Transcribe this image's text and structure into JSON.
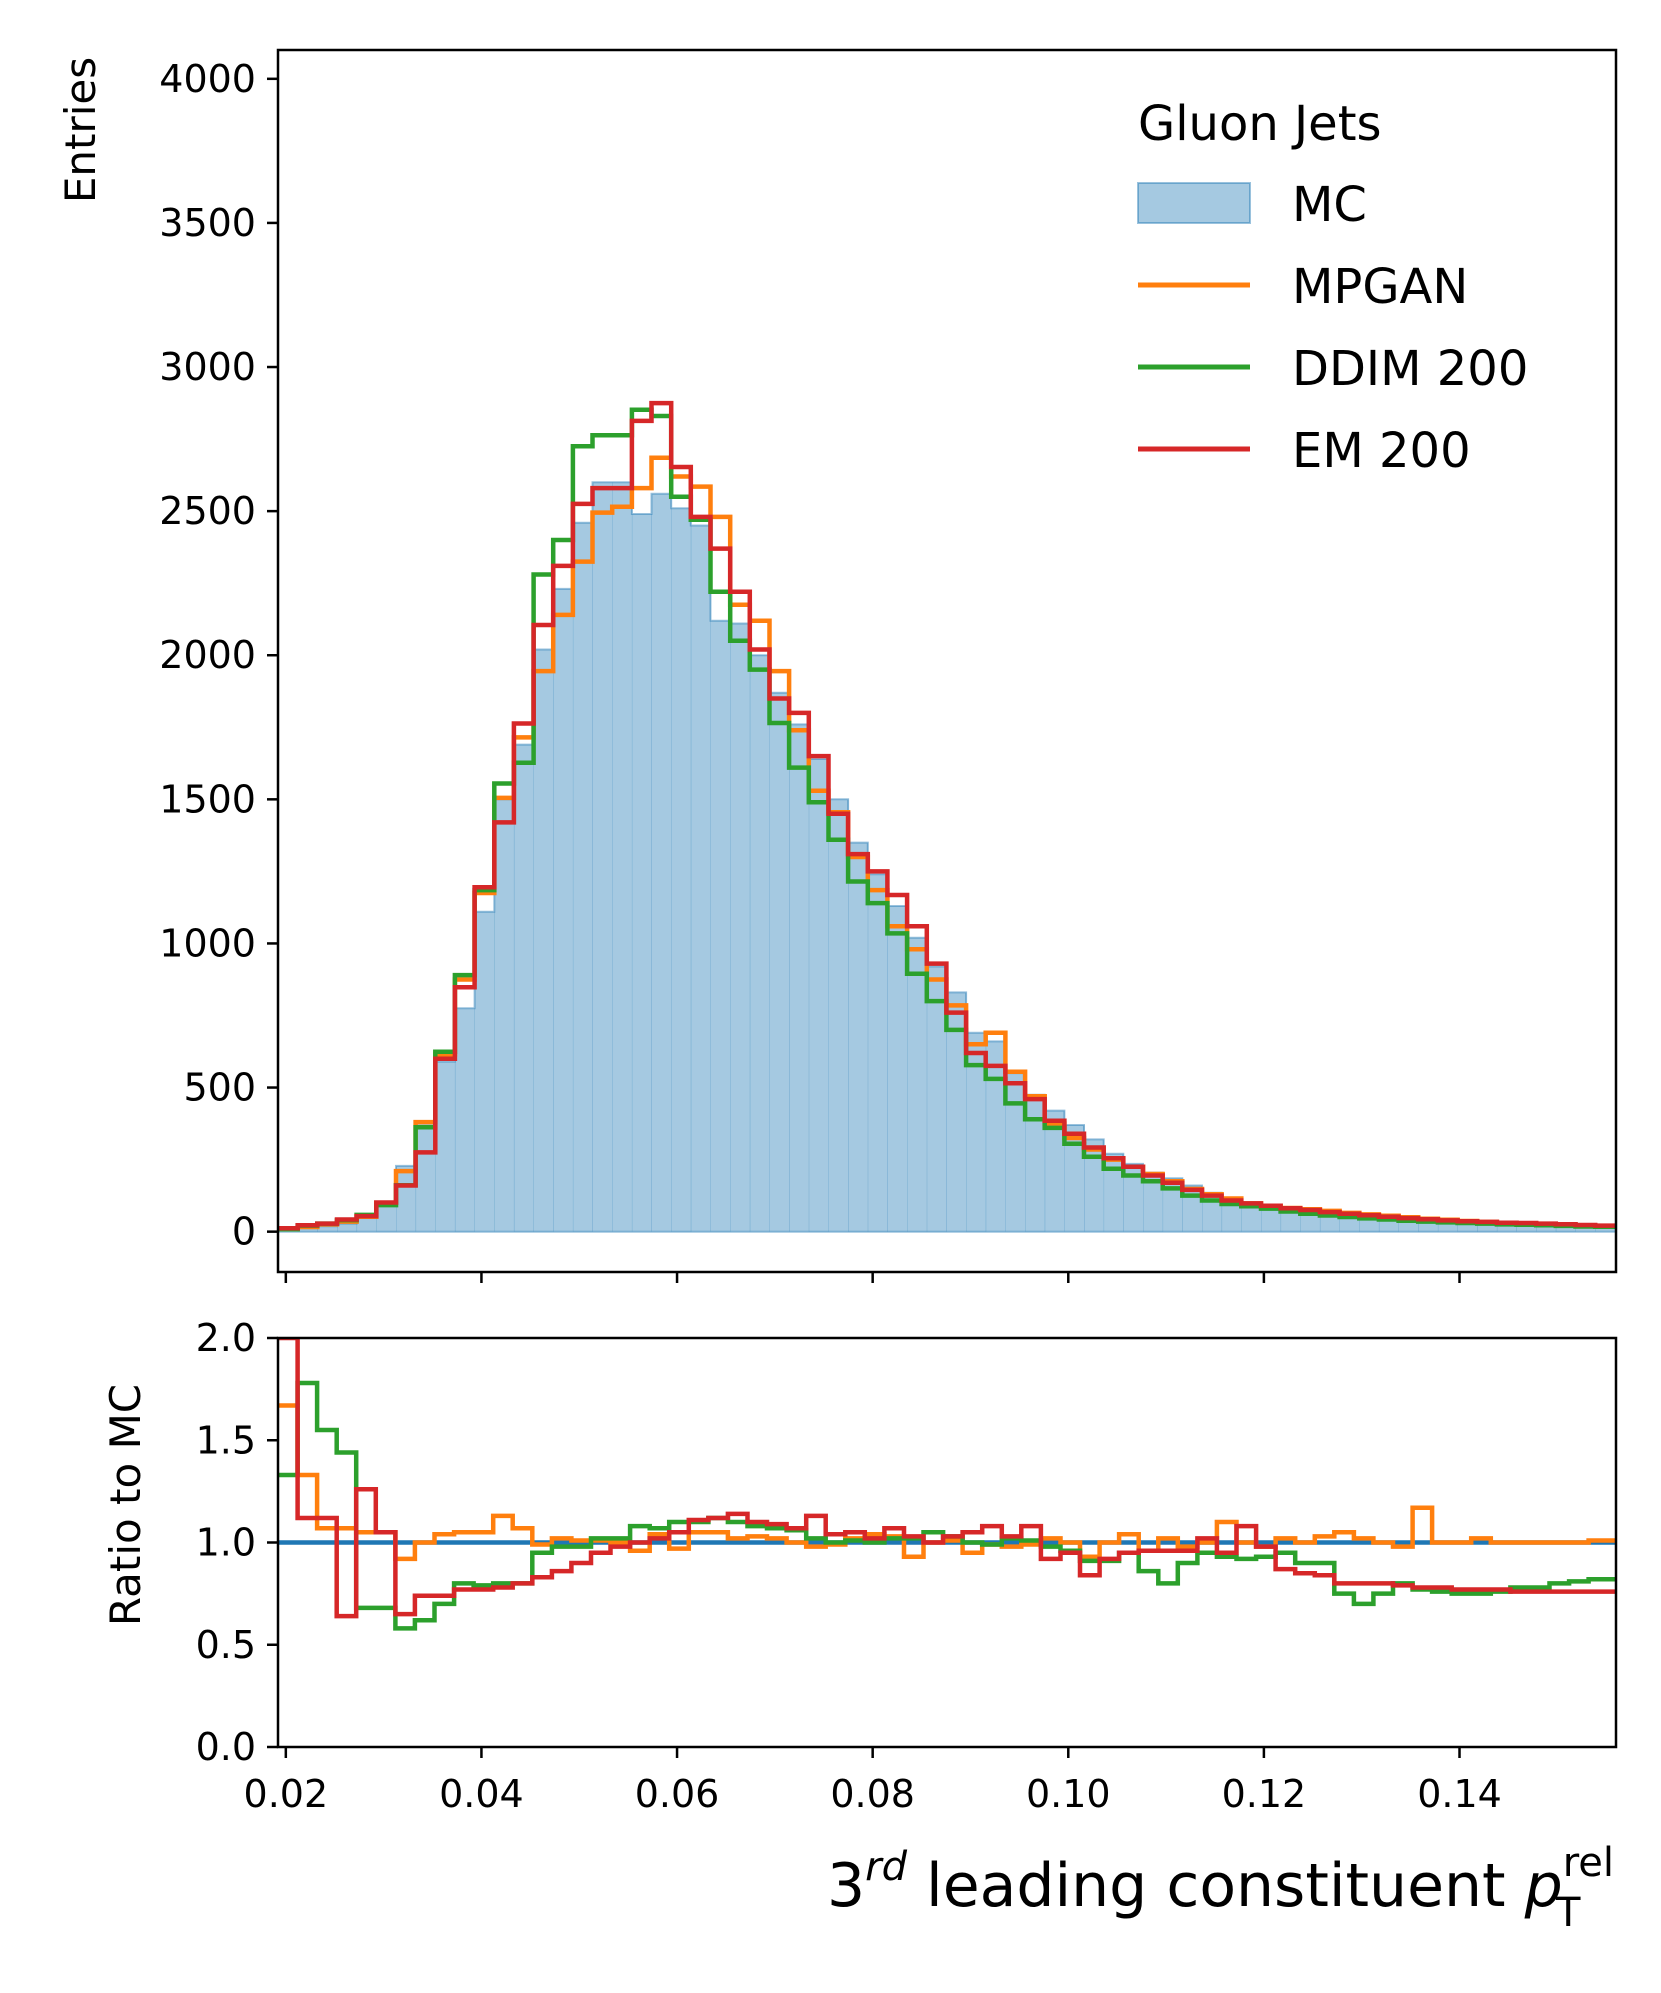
{
  "chart_data": [
    {
      "type": "histogram",
      "panel": "main",
      "ylabel": "Entries",
      "ylim": [
        -140,
        4100
      ],
      "yticks": [
        0,
        500,
        1000,
        1500,
        2000,
        2500,
        3000,
        3500,
        4000
      ],
      "ytick_labels": [
        "0",
        "500",
        "1000",
        "1500",
        "2000",
        "2500",
        "3000",
        "3500",
        "4000"
      ],
      "xlim": [
        0.0192,
        0.156
      ],
      "bin_edges": [
        0.0192,
        0.02121,
        0.02322,
        0.02523,
        0.02724,
        0.02925,
        0.03126,
        0.03327,
        0.03528,
        0.03729,
        0.0393,
        0.04131,
        0.04332,
        0.04533,
        0.04734,
        0.04935,
        0.05136,
        0.05337,
        0.05538,
        0.05739,
        0.0594,
        0.06141,
        0.06342,
        0.06543,
        0.06744,
        0.06945,
        0.07146,
        0.07347,
        0.07548,
        0.07749,
        0.0795,
        0.08151,
        0.08352,
        0.08553,
        0.08754,
        0.08955,
        0.09156,
        0.09357,
        0.09558,
        0.09759,
        0.0996,
        0.10161,
        0.10362,
        0.10563,
        0.10764,
        0.10965,
        0.11166,
        0.11367,
        0.11568,
        0.11769,
        0.1197,
        0.12171,
        0.12372,
        0.12573,
        0.12774,
        0.12975,
        0.13176,
        0.13377,
        0.13578,
        0.13779,
        0.1398,
        0.14181,
        0.14382,
        0.14583,
        0.14784,
        0.14985,
        0.15186,
        0.15387,
        0.156
      ],
      "legend": {
        "title": "Gluon Jets",
        "location": "upper right"
      },
      "series": [
        {
          "name": "MC",
          "style": "filled",
          "color": "#1f77b4",
          "values": [
            6,
            12,
            19,
            28,
            48,
            95,
            228,
            380,
            590,
            775,
            1110,
            1500,
            1690,
            2020,
            2230,
            2460,
            2600,
            2600,
            2490,
            2560,
            2510,
            2450,
            2120,
            2110,
            2000,
            1870,
            1760,
            1640,
            1500,
            1350,
            1240,
            1130,
            1020,
            920,
            830,
            690,
            660,
            550,
            475,
            420,
            370,
            320,
            270,
            235,
            205,
            185,
            160,
            135,
            115,
            100,
            92,
            85,
            82,
            75,
            66,
            60,
            55,
            50,
            46,
            42,
            38,
            35,
            33,
            32,
            30,
            28,
            24,
            22
          ]
        },
        {
          "name": "MPGAN",
          "style": "step",
          "color": "#ff7f0e",
          "values": [
            10,
            16,
            25,
            35,
            52,
            100,
            210,
            380,
            615,
            875,
            1175,
            1505,
            1715,
            1945,
            2140,
            2325,
            2495,
            2515,
            2580,
            2685,
            2620,
            2585,
            2480,
            2175,
            2120,
            1945,
            1740,
            1530,
            1455,
            1300,
            1185,
            1060,
            980,
            875,
            785,
            650,
            690,
            555,
            470,
            375,
            325,
            285,
            250,
            225,
            200,
            175,
            148,
            130,
            115,
            98,
            90,
            82,
            78,
            72,
            65,
            60,
            55,
            50,
            45,
            41,
            37,
            34,
            31,
            29,
            27,
            25,
            22,
            20
          ]
        },
        {
          "name": "DDIM 200",
          "style": "step",
          "color": "#2ca02c",
          "values": [
            8,
            21,
            28,
            40,
            58,
            92,
            161,
            362,
            624,
            890,
            1185,
            1555,
            1627,
            2280,
            2400,
            2725,
            2763,
            2763,
            2852,
            2830,
            2550,
            2470,
            2220,
            2050,
            1950,
            1765,
            1610,
            1490,
            1360,
            1215,
            1140,
            1035,
            895,
            800,
            700,
            578,
            530,
            445,
            390,
            360,
            305,
            260,
            218,
            195,
            175,
            150,
            125,
            108,
            96,
            88,
            80,
            70,
            62,
            56,
            51,
            46,
            42,
            38,
            35,
            32,
            30,
            28,
            25,
            24,
            22,
            20,
            18,
            17
          ]
        },
        {
          "name": "EM 200",
          "style": "step",
          "color": "#d62728",
          "values": [
            12,
            22,
            28,
            42,
            54,
            101,
            160,
            275,
            600,
            848,
            1195,
            1420,
            1763,
            2105,
            2310,
            2525,
            2580,
            2580,
            2813,
            2875,
            2653,
            2480,
            2370,
            2220,
            2020,
            1850,
            1800,
            1650,
            1450,
            1310,
            1250,
            1168,
            1060,
            930,
            760,
            620,
            575,
            515,
            460,
            385,
            340,
            292,
            255,
            225,
            195,
            170,
            145,
            125,
            108,
            98,
            90,
            81,
            75,
            68,
            62,
            57,
            52,
            47,
            43,
            39,
            36,
            34,
            31,
            30,
            28,
            26,
            23,
            21
          ]
        }
      ]
    },
    {
      "type": "line",
      "panel": "ratio",
      "ylabel": "Ratio to MC",
      "xlabel": "3rd leading constituent pT rel",
      "xlabel_parts": {
        "base": "3",
        "sup": "rd",
        "text": " leading constituent ",
        "var": "p",
        "var_sub": "T",
        "var_sup": "rel"
      },
      "ylim": [
        0,
        2
      ],
      "yticks": [
        0.0,
        0.5,
        1.0,
        1.5,
        2.0
      ],
      "ytick_labels": [
        "0.0",
        "0.5",
        "1.0",
        "1.5",
        "2.0"
      ],
      "xticks": [
        0.02,
        0.04,
        0.06,
        0.08,
        0.1,
        0.12,
        0.14
      ],
      "xtick_labels": [
        "0.02",
        "0.04",
        "0.06",
        "0.08",
        "0.10",
        "0.12",
        "0.14"
      ],
      "reference": {
        "y": 1.0,
        "color": "#1f77b4"
      },
      "bin_edges": [
        0.0192,
        0.0212,
        0.0232,
        0.0252,
        0.0272,
        0.0292,
        0.0312,
        0.0332,
        0.0352,
        0.0372,
        0.0392,
        0.0412,
        0.0432,
        0.0452,
        0.0472,
        0.0492,
        0.0512,
        0.0532,
        0.0552,
        0.0572,
        0.0592,
        0.0612,
        0.0632,
        0.0652,
        0.0672,
        0.0692,
        0.0712,
        0.0732,
        0.0752,
        0.0772,
        0.0792,
        0.0812,
        0.0832,
        0.0852,
        0.0872,
        0.0892,
        0.0912,
        0.0932,
        0.0952,
        0.0972,
        0.0992,
        0.1012,
        0.1032,
        0.1052,
        0.1072,
        0.1092,
        0.1112,
        0.1132,
        0.1152,
        0.1172,
        0.1192,
        0.1212,
        0.1232,
        0.1252,
        0.1272,
        0.1292,
        0.1312,
        0.1332,
        0.1352,
        0.1372,
        0.1392,
        0.1412,
        0.1432,
        0.1452,
        0.1472,
        0.1492,
        0.1512,
        0.1532,
        0.156
      ],
      "series": [
        {
          "name": "MPGAN",
          "color": "#ff7f0e",
          "values": [
            1.67,
            1.33,
            1.07,
            1.07,
            1.05,
            1.05,
            0.92,
            1.0,
            1.04,
            1.05,
            1.05,
            1.13,
            1.07,
            0.99,
            1.02,
            1.01,
            1.01,
            1.0,
            0.96,
            1.04,
            0.97,
            1.05,
            1.05,
            1.02,
            1.03,
            1.02,
            1.0,
            0.98,
            0.99,
            1.02,
            1.04,
            1.03,
            0.93,
            1.0,
            1.01,
            0.95,
            0.99,
            0.98,
            0.99,
            1.02,
            1.0,
            0.93,
            1.0,
            1.04,
            0.96,
            1.02,
            0.98,
            1.0,
            1.1,
            1.0,
            0.98,
            1.02,
            1.0,
            1.03,
            1.05,
            1.02,
            1.0,
            0.98,
            1.17,
            1.0,
            1.0,
            1.02,
            1.0,
            1.0,
            1.0,
            1.0,
            1.0,
            1.01
          ]
        },
        {
          "name": "DDIM 200",
          "color": "#2ca02c",
          "values": [
            1.33,
            1.78,
            1.55,
            1.44,
            0.68,
            0.68,
            0.58,
            0.62,
            0.7,
            0.8,
            0.79,
            0.8,
            0.8,
            0.95,
            0.98,
            0.98,
            1.02,
            1.02,
            1.08,
            1.07,
            1.1,
            1.1,
            1.12,
            1.1,
            1.08,
            1.07,
            1.06,
            1.02,
            1.0,
            1.01,
            1.0,
            1.02,
            1.02,
            1.05,
            1.03,
            1.0,
            0.99,
            1.02,
            1.01,
            0.98,
            0.96,
            0.91,
            0.91,
            0.95,
            0.86,
            0.8,
            0.9,
            0.95,
            0.93,
            0.92,
            0.93,
            0.95,
            0.9,
            0.9,
            0.75,
            0.7,
            0.75,
            0.8,
            0.77,
            0.76,
            0.75,
            0.75,
            0.76,
            0.78,
            0.78,
            0.8,
            0.81,
            0.82
          ]
        },
        {
          "name": "EM 200",
          "color": "#d62728",
          "values": [
            2.0,
            1.12,
            1.12,
            0.64,
            1.26,
            1.05,
            0.65,
            0.74,
            0.74,
            0.77,
            0.77,
            0.78,
            0.8,
            0.83,
            0.86,
            0.9,
            0.95,
            0.98,
            1.0,
            1.02,
            1.05,
            1.11,
            1.12,
            1.14,
            1.1,
            1.09,
            1.07,
            1.13,
            1.04,
            1.05,
            1.02,
            1.07,
            1.03,
            1.0,
            1.03,
            1.05,
            1.08,
            1.03,
            1.08,
            0.92,
            0.95,
            0.84,
            0.92,
            0.95,
            0.96,
            0.96,
            0.96,
            1.02,
            0.95,
            1.08,
            0.98,
            0.87,
            0.85,
            0.84,
            0.8,
            0.8,
            0.8,
            0.79,
            0.78,
            0.78,
            0.77,
            0.77,
            0.77,
            0.76,
            0.76,
            0.76,
            0.76,
            0.76
          ]
        }
      ]
    }
  ]
}
